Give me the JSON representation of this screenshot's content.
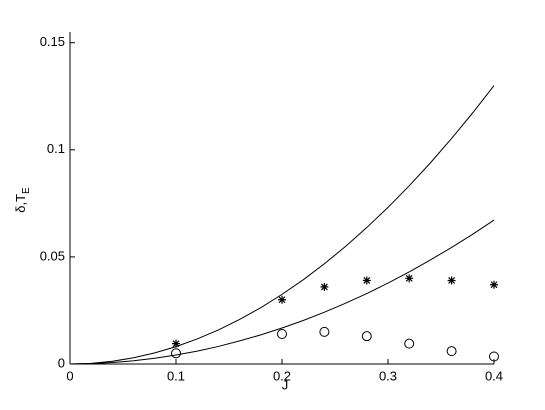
{
  "chart_data": {
    "type": "line",
    "xlabel": "J",
    "ylabel": "δ,T",
    "ylabel_sub": "E",
    "xlim": [
      0,
      0.4
    ],
    "ylim": [
      0,
      0.155
    ],
    "xticks": [
      0,
      0.1,
      0.2,
      0.3,
      0.4
    ],
    "yticks": [
      0,
      0.05,
      0.1,
      0.15
    ],
    "series": [
      {
        "style": "line",
        "color": "#000000",
        "x": [
          0,
          0.02,
          0.04,
          0.06,
          0.08,
          0.1,
          0.12,
          0.14,
          0.16,
          0.18,
          0.2,
          0.22,
          0.24,
          0.26,
          0.28,
          0.3,
          0.32,
          0.34,
          0.36,
          0.38,
          0.4
        ],
        "values": [
          0,
          0.0003,
          0.0013,
          0.0029,
          0.0052,
          0.0081,
          0.0117,
          0.0159,
          0.0208,
          0.0263,
          0.0325,
          0.0393,
          0.0468,
          0.0549,
          0.0637,
          0.0731,
          0.0832,
          0.0939,
          0.1053,
          0.1173,
          0.13
        ]
      },
      {
        "style": "line",
        "color": "#000000",
        "x": [
          0,
          0.02,
          0.04,
          0.06,
          0.08,
          0.1,
          0.12,
          0.14,
          0.16,
          0.18,
          0.2,
          0.22,
          0.24,
          0.26,
          0.28,
          0.3,
          0.32,
          0.34,
          0.36,
          0.38,
          0.4
        ],
        "values": [
          0,
          0.0002,
          0.0007,
          0.0015,
          0.0027,
          0.0042,
          0.006,
          0.0082,
          0.0108,
          0.0136,
          0.0168,
          0.0203,
          0.0242,
          0.0284,
          0.0329,
          0.0378,
          0.043,
          0.0486,
          0.0544,
          0.0606,
          0.0672
        ]
      },
      {
        "style": "star",
        "color": "#000000",
        "x": [
          0.1,
          0.2,
          0.24,
          0.28,
          0.32,
          0.36,
          0.4
        ],
        "values": [
          0.0095,
          0.03,
          0.036,
          0.039,
          0.04,
          0.039,
          0.037
        ]
      },
      {
        "style": "circle",
        "color": "#000000",
        "x": [
          0.1,
          0.2,
          0.24,
          0.28,
          0.32,
          0.36,
          0.4
        ],
        "values": [
          0.005,
          0.014,
          0.015,
          0.013,
          0.0095,
          0.006,
          0.0035
        ]
      }
    ]
  }
}
